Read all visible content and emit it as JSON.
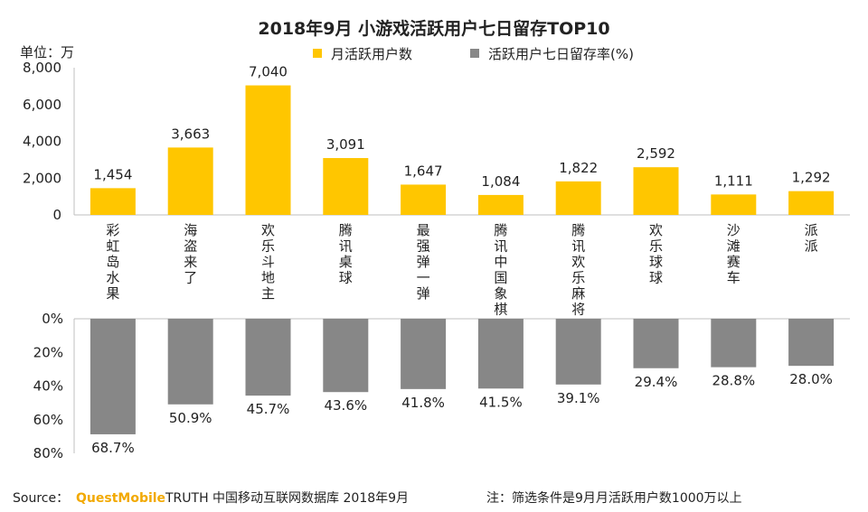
{
  "chart_data": {
    "type": "bar",
    "title": "2018年9月 小游戏活跃用户七日留存TOP10",
    "unit_label": "单位：万",
    "categories": [
      "彩虹岛水果",
      "海盗来了",
      "欢乐斗地主",
      "腾讯桌球",
      "最强弹一弹",
      "腾讯中国象棋",
      "腾讯欢乐麻将",
      "欢乐球球",
      "沙滩赛车",
      "派派"
    ],
    "series": [
      {
        "name": "月活跃用户数",
        "color": "#FFC600",
        "values": [
          1454,
          3663,
          7040,
          3091,
          1647,
          1084,
          1822,
          2592,
          1111,
          1292
        ],
        "labels": [
          "1,454",
          "3,663",
          "7,040",
          "3,091",
          "1,647",
          "1,084",
          "1,822",
          "2,592",
          "1,111",
          "1,292"
        ],
        "ylim": [
          0,
          8000
        ],
        "ticks": [
          "0",
          "2,000",
          "4,000",
          "6,000",
          "8,000"
        ],
        "tick_values": [
          0,
          2000,
          4000,
          6000,
          8000
        ]
      },
      {
        "name": "活跃用户七日留存率(%)",
        "color": "#878787",
        "values": [
          68.7,
          50.9,
          45.7,
          43.6,
          41.8,
          41.5,
          39.1,
          29.4,
          28.8,
          28.0
        ],
        "labels": [
          "68.7%",
          "50.9%",
          "45.7%",
          "43.6%",
          "41.8%",
          "41.5%",
          "39.1%",
          "29.4%",
          "28.8%",
          "28.0%"
        ],
        "ylim": [
          0,
          80
        ],
        "inverted": true,
        "ticks": [
          "0%",
          "20%",
          "40%",
          "60%",
          "80%"
        ],
        "tick_values": [
          0,
          20,
          40,
          60,
          80
        ]
      }
    ],
    "legend_position": "top-center",
    "grid": false
  },
  "footer": {
    "source_label": "Source：",
    "brand": "QuestMobile",
    "source_text": "TRUTH 中国移动互联网数据库 2018年9月",
    "note": "注：筛选条件是9月月活跃用户数1000万以上"
  }
}
